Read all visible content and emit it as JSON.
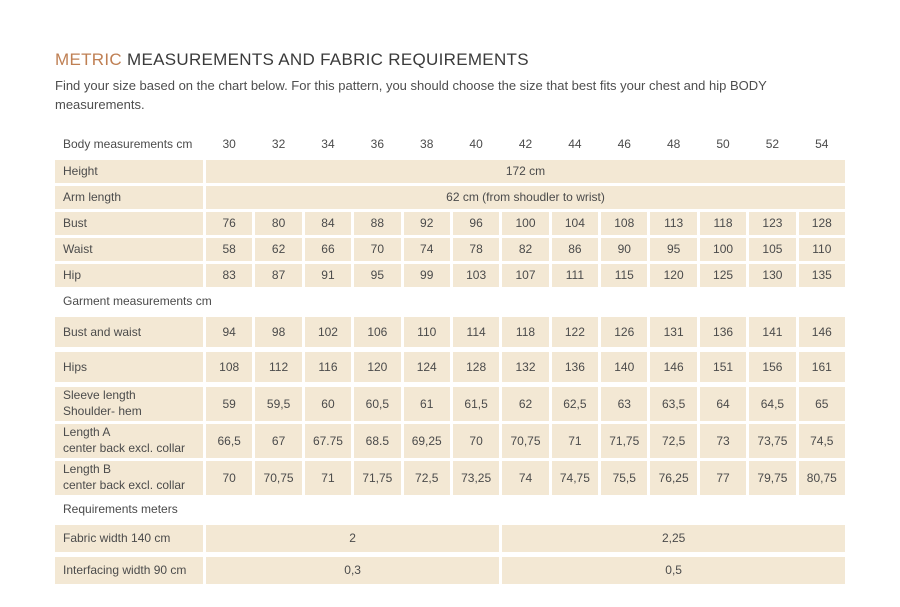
{
  "colors": {
    "accent": "#bf7f53",
    "cell_bg": "#f3e8d4",
    "text": "#474747"
  },
  "header": {
    "title_accent": "METRIC",
    "title_rest": " MEASUREMENTS AND FABRIC REQUIREMENTS",
    "subtitle": "Find your size based on the chart below. For this pattern, you should choose the size that best fits your chest and hip BODY measurements."
  },
  "table": {
    "header": {
      "label": "Body measurements cm",
      "sizes": [
        "30",
        "32",
        "34",
        "36",
        "38",
        "40",
        "42",
        "44",
        "46",
        "48",
        "50",
        "52",
        "54"
      ]
    },
    "body": {
      "merged_rows": [
        {
          "label": "Height",
          "value": "172 cm"
        },
        {
          "label": "Arm length",
          "value": "62 cm (from shoudler to wrist)"
        }
      ],
      "rows": [
        {
          "label": "Bust",
          "values": [
            "76",
            "80",
            "84",
            "88",
            "92",
            "96",
            "100",
            "104",
            "108",
            "113",
            "118",
            "123",
            "128"
          ]
        },
        {
          "label": "Waist",
          "values": [
            "58",
            "62",
            "66",
            "70",
            "74",
            "78",
            "82",
            "86",
            "90",
            "95",
            "100",
            "105",
            "110"
          ]
        },
        {
          "label": "Hip",
          "values": [
            "83",
            "87",
            "91",
            "95",
            "99",
            "103",
            "107",
            "111",
            "115",
            "120",
            "125",
            "130",
            "135"
          ]
        }
      ]
    },
    "garment": {
      "section_label": "Garment measurements cm",
      "rows": [
        {
          "label": "Bust and waist",
          "sublabel": "",
          "values": [
            "94",
            "98",
            "102",
            "106",
            "110",
            "114",
            "118",
            "122",
            "126",
            "131",
            "136",
            "141",
            "146"
          ]
        },
        {
          "label": "Hips",
          "sublabel": "",
          "values": [
            "108",
            "112",
            "116",
            "120",
            "124",
            "128",
            "132",
            "136",
            "140",
            "146",
            "151",
            "156",
            "161"
          ]
        },
        {
          "label": "Sleeve length",
          "sublabel": "Shoulder- hem",
          "values": [
            "59",
            "59,5",
            "60",
            "60,5",
            "61",
            "61,5",
            "62",
            "62,5",
            "63",
            "63,5",
            "64",
            "64,5",
            "65"
          ]
        },
        {
          "label": "Length A",
          "sublabel": "center back excl. collar",
          "values": [
            "66,5",
            "67",
            "67.75",
            "68.5",
            "69,25",
            "70",
            "70,75",
            "71",
            "71,75",
            "72,5",
            "73",
            "73,75",
            "74,5"
          ]
        },
        {
          "label": "Length B",
          "sublabel": "center back excl. collar",
          "values": [
            "70",
            "70,75",
            "71",
            "71,75",
            "72,5",
            "73,25",
            "74",
            "74,75",
            "75,5",
            "76,25",
            "77",
            "79,75",
            "80,75"
          ]
        }
      ]
    },
    "requirements": {
      "section_label": "Requirements meters",
      "rows": [
        {
          "label": "Fabric width 140 cm",
          "left": "2",
          "right": "2,25"
        },
        {
          "label": "Interfacing width 90 cm",
          "left": "0,3",
          "right": "0,5"
        }
      ]
    }
  }
}
